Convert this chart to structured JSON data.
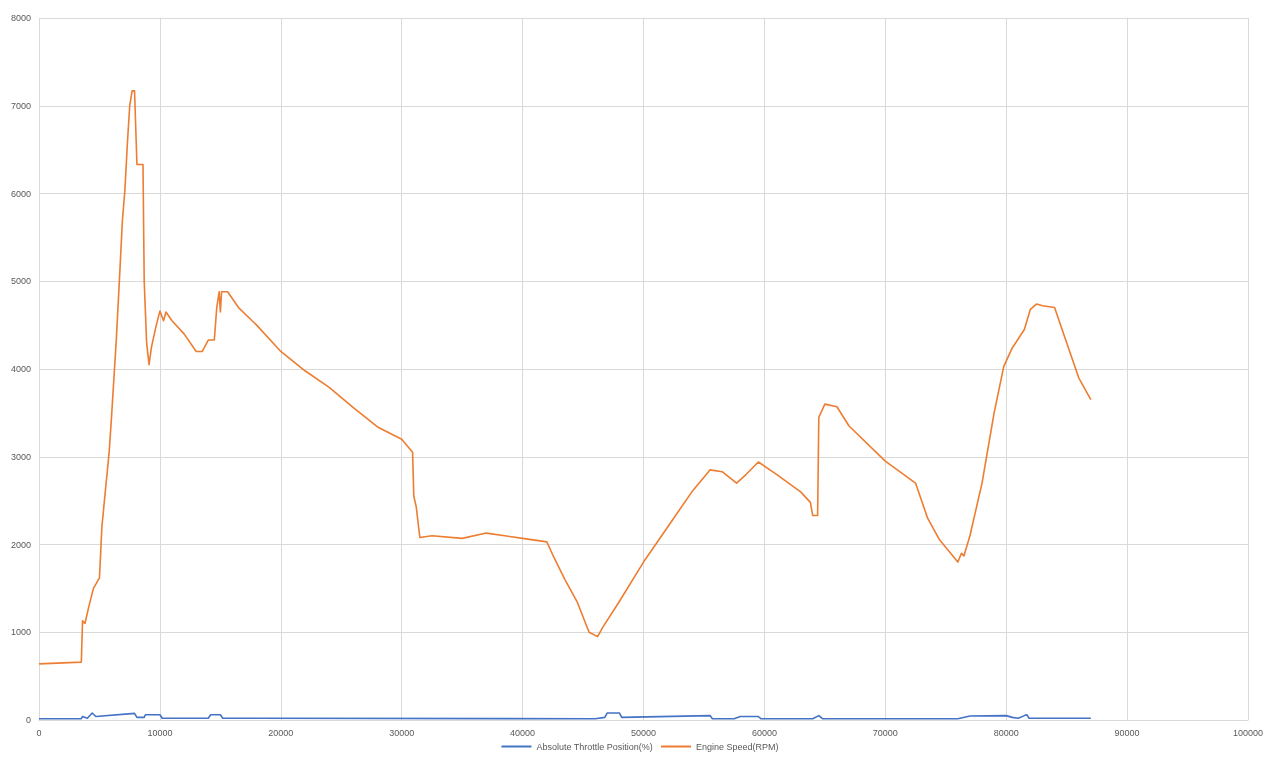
{
  "chart_data": {
    "type": "line",
    "xlim": [
      0,
      100000
    ],
    "xticks": [
      0,
      10000,
      20000,
      30000,
      40000,
      50000,
      60000,
      70000,
      80000,
      90000,
      100000
    ],
    "ylim": [
      0,
      8000
    ],
    "yticks": [
      0,
      1000,
      2000,
      3000,
      4000,
      5000,
      6000,
      7000,
      8000
    ],
    "grid": true,
    "legend": "bottom",
    "marker": "none",
    "line_style": "solid",
    "series": [
      {
        "name": "Absolute Throttle Position(%)",
        "color": "#4472c4",
        "x": [
          0,
          3500,
          3600,
          4000,
          4400,
          4700,
          7900,
          8100,
          8700,
          8800,
          10000,
          10200,
          14000,
          14200,
          15000,
          15200,
          46000,
          46800,
          47000,
          48000,
          48200,
          55500,
          55700,
          57500,
          58000,
          59500,
          59700,
          64000,
          64500,
          64800,
          76000,
          77000,
          80000,
          80500,
          81000,
          81500,
          81700,
          81900,
          87000
        ],
        "values": [
          15,
          15,
          40,
          20,
          80,
          40,
          75,
          30,
          30,
          60,
          60,
          20,
          20,
          60,
          60,
          20,
          15,
          30,
          80,
          80,
          30,
          50,
          15,
          15,
          40,
          40,
          15,
          15,
          50,
          15,
          15,
          45,
          50,
          30,
          20,
          50,
          60,
          20,
          20
        ]
      },
      {
        "name": "Engine Speed(RPM)",
        "color": "#ed7d31",
        "x": [
          0,
          3500,
          3600,
          3800,
          4100,
          4500,
          5000,
          5200,
          5500,
          5800,
          6000,
          6400,
          6700,
          6900,
          7100,
          7300,
          7500,
          7700,
          7900,
          8100,
          8600,
          8700,
          8900,
          9100,
          9300,
          9700,
          10000,
          10300,
          10500,
          11000,
          12000,
          13000,
          13500,
          14000,
          14500,
          14700,
          14900,
          15000,
          15100,
          15600,
          16500,
          18000,
          20000,
          22000,
          24000,
          26000,
          28000,
          30000,
          30900,
          31000,
          31200,
          31500,
          32500,
          35000,
          37000,
          40000,
          42000,
          42500,
          43500,
          44500,
          45500,
          46200,
          46600,
          48000,
          50000,
          52000,
          54000,
          55500,
          56500,
          57700,
          58500,
          59500,
          61000,
          63000,
          63800,
          64000,
          64400,
          64500,
          65000,
          66000,
          67000,
          70000,
          72500,
          73500,
          74500,
          76000,
          76300,
          76500,
          77000,
          78000,
          79000,
          79800,
          80500,
          81500,
          82000,
          82500,
          83000,
          84000,
          85000,
          85500,
          86000,
          87000
        ],
        "values": [
          640,
          660,
          1130,
          1100,
          1280,
          1500,
          1620,
          2200,
          2630,
          3050,
          3460,
          4350,
          5150,
          5700,
          6030,
          6550,
          7000,
          7170,
          7170,
          6330,
          6330,
          5000,
          4300,
          4050,
          4250,
          4500,
          4660,
          4550,
          4650,
          4550,
          4400,
          4200,
          4200,
          4330,
          4330,
          4700,
          4880,
          4650,
          4880,
          4880,
          4700,
          4500,
          4200,
          3980,
          3790,
          3560,
          3340,
          3200,
          3050,
          2550,
          2430,
          2080,
          2100,
          2070,
          2130,
          2070,
          2030,
          1880,
          1600,
          1350,
          1000,
          950,
          1050,
          1350,
          1800,
          2200,
          2600,
          2850,
          2830,
          2700,
          2800,
          2940,
          2800,
          2600,
          2480,
          2330,
          2330,
          3450,
          3600,
          3570,
          3350,
          2950,
          2700,
          2300,
          2050,
          1800,
          1900,
          1870,
          2100,
          2700,
          3500,
          4030,
          4240,
          4450,
          4680,
          4740,
          4720,
          4700,
          4300,
          4100,
          3900,
          3650
        ]
      }
    ]
  }
}
